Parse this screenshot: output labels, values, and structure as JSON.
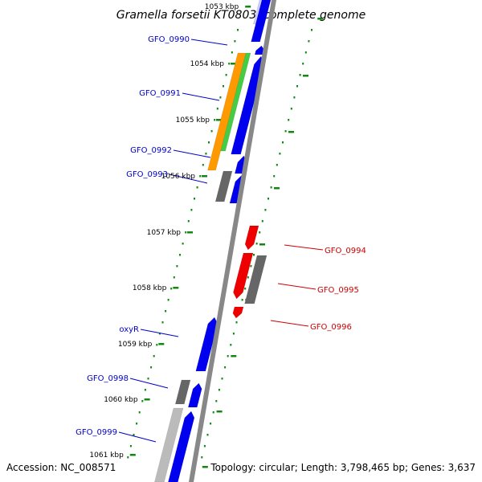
{
  "title": "Gramella forsetii KT0803, complete genome",
  "footer": {
    "accession": "Accession: NC_008571",
    "topology": "Topology: circular; Length: 3,798,465 bp; Genes: 3,637"
  },
  "colors": {
    "forward": "#0000ee",
    "reverse": "#ee0000",
    "label_forward": "#0000cc",
    "label_reverse": "#cc0000",
    "orange": "#ff9900",
    "green": "#44cc44",
    "gray": "#666666",
    "light_gray": "#bbbbbb",
    "faded": "#ccccff",
    "backbone": "#888888",
    "ticks": "#118811"
  },
  "ticks": [
    "1053 kbp",
    "1054 kbp",
    "1055 kbp",
    "1056 kbp",
    "1057 kbp",
    "1058 kbp",
    "1059 kbp",
    "1060 kbp",
    "1061 kbp"
  ],
  "genes": [
    {
      "id": "GFO_0990",
      "label": "GFO_0990",
      "strand": "forward"
    },
    {
      "id": "GFO_0991",
      "label": "GFO_0991",
      "strand": "forward"
    },
    {
      "id": "GFO_0992",
      "label": "GFO_0992",
      "strand": "forward"
    },
    {
      "id": "GFO_0993",
      "label": "GFO_0993",
      "strand": "forward"
    },
    {
      "id": "GFO_0994",
      "label": "GFO_0994",
      "strand": "reverse"
    },
    {
      "id": "GFO_0995",
      "label": "GFO_0995",
      "strand": "reverse"
    },
    {
      "id": "GFO_0996",
      "label": "GFO_0996",
      "strand": "reverse"
    },
    {
      "id": "oxyR",
      "label": "oxyR",
      "strand": "forward"
    },
    {
      "id": "GFO_0998",
      "label": "GFO_0998",
      "strand": "forward"
    },
    {
      "id": "GFO_0999",
      "label": "GFO_0999",
      "strand": "forward"
    }
  ]
}
